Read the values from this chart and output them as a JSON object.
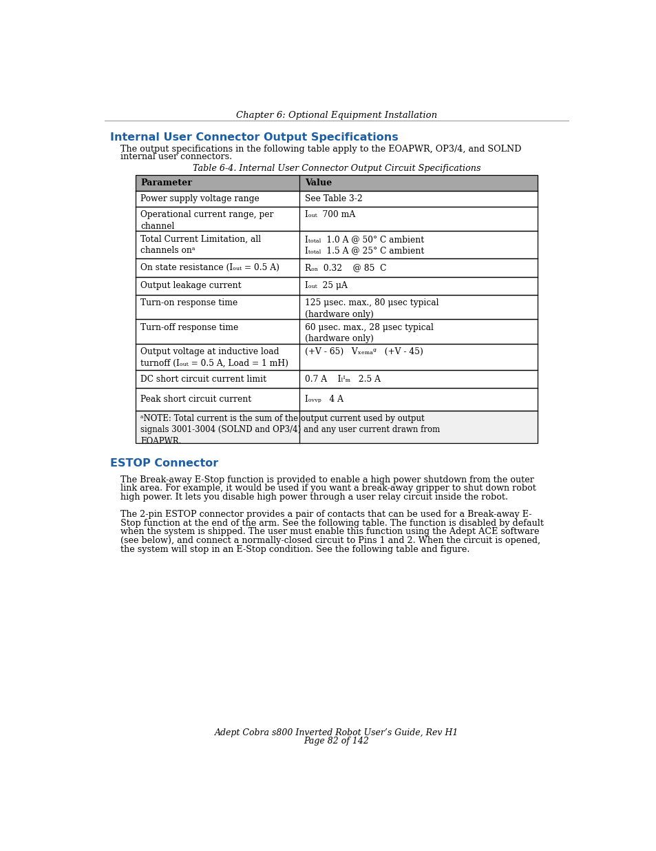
{
  "page_width": 9.54,
  "page_height": 12.35,
  "bg_color": "#ffffff",
  "header_text": "Chapter 6: Optional Equipment Installation",
  "section1_title": "Internal User Connector Output Specifications",
  "section1_title_color": "#1B5EA6",
  "section1_body1": "The output specifications in the following table apply to the EOAPWR, OP3/4, and SOLND",
  "section1_body2": "internal user connectors.",
  "table_caption": "Table 6-4. Internal User Connector Output Circuit Specifications",
  "table_header_bg": "#a6a6a6",
  "table_border_color": "#000000",
  "col1_header": "Parameter",
  "col2_header": "Value",
  "col1_rows": [
    "Power supply voltage range",
    "Operational current range, per\nchannel",
    "Total Current Limitation, all\nchannels onᵃ",
    "On state resistance (Iₒᵤₜ = 0.5 A)",
    "Output leakage current",
    "Turn-on response time",
    "Turn-off response time",
    "Output voltage at inductive load\nturnoff (Iₒᵤₜ = 0.5 A, Load = 1 mH)",
    "DC short circuit current limit",
    "Peak short circuit current"
  ],
  "col2_rows": [
    "See Table 3-2",
    "Iₒᵤₜ  700 mA",
    "Iₜₒₜₐₗ  1.0 A @ 50° C ambient\nIₜₒₜₐₗ  1.5 A @ 25° C ambient",
    "Rₒₙ  0.32    @ 85  C",
    "Iₒᵤₜ  25 μA",
    "125 μsec. max., 80 μsec typical\n(hardware only)",
    "60 μsec. max., 28 μsec typical\n(hardware only)",
    "(+V - 65)   Vₓₑₘₐᵍ   (+V - 45)",
    "0.7 A    Iₗᴵₘ   2.5 A",
    "Iₒᵥᵥₚ   4 A"
  ],
  "note_text": "ᵃNOTE: Total current is the sum of the output current used by output\nsignals 3001-3004 (SOLND and OP3/4) and any user current drawn from\nEOAPWR.",
  "section2_title": "ESTOP Connector",
  "section2_title_color": "#1B5EA6",
  "section2_para1_lines": [
    "The Break-away E-Stop function is provided to enable a high power shutdown from the outer",
    "link area. For example, it would be used if you want a break-away gripper to shut down robot",
    "high power. It lets you disable high power through a user relay circuit inside the robot."
  ],
  "section2_para2_lines": [
    "The 2-pin ESTOP connector provides a pair of contacts that can be used for a Break-away E-",
    "Stop function at the end of the arm. See the following table. The function is disabled by default",
    "when the system is shipped. The user must enable this function using the Adept ACE software",
    "(see below), and connect a normally-closed circuit to Pins 1 and 2. When the circuit is opened,",
    "the system will stop in an E-Stop condition. See the following table and figure."
  ],
  "footer_line1": "Adept Cobra s800 Inverted Robot User’s Guide, Rev H1",
  "footer_line2": "Page 82 of 142"
}
